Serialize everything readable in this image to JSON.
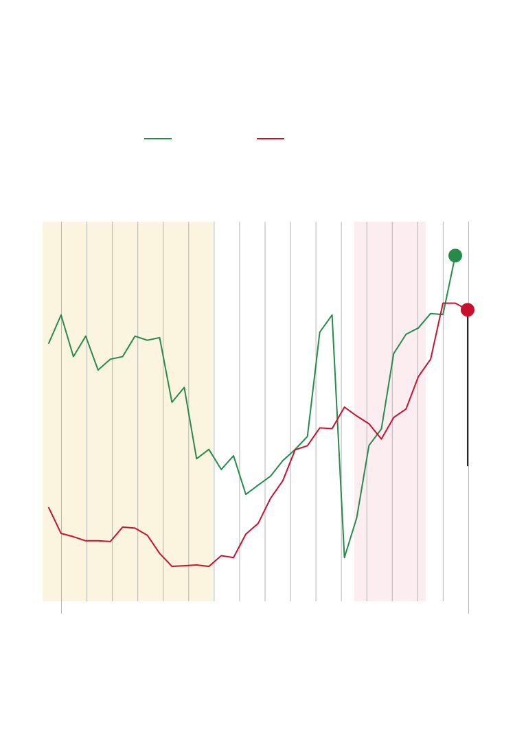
{
  "chart_data": {
    "type": "line",
    "title": "",
    "xlabel": "",
    "ylabel": "",
    "x": [
      0,
      1,
      2,
      3,
      4,
      5,
      6,
      7,
      8,
      9,
      10,
      11,
      12,
      13,
      14,
      15,
      16,
      17,
      18,
      19,
      20,
      21,
      22,
      23,
      24,
      25,
      26,
      27,
      28,
      29,
      30,
      31,
      32,
      33,
      34
    ],
    "ylim": [
      0,
      100
    ],
    "grid": "vertical",
    "legend": "top-center",
    "shaded_regions": [
      {
        "x_start": -0.5,
        "x_end": 13.3,
        "color": "#fbf5df"
      },
      {
        "x_start": 24.8,
        "x_end": 30.6,
        "color": "#fcedf0"
      }
    ],
    "series": [
      {
        "name": "",
        "color": "#258a4a",
        "values": [
          69.5,
          77.1,
          65.9,
          71.4,
          62.3,
          65.2,
          65.9,
          71.4,
          70.3,
          71.0,
          53.6,
          57.6,
          38.4,
          40.9,
          35.5,
          39.2,
          28.8,
          31.3,
          33.7,
          37.9,
          40.9,
          44.4,
          72.5,
          77.1,
          11.8,
          22.5,
          42.0,
          46.4,
          66.7,
          71.9,
          73.6,
          77.5,
          77.2,
          93.1,
          null
        ],
        "end_marker": true
      },
      {
        "name": "",
        "color": "#c8102e",
        "values": [
          25.2,
          18.3,
          17.4,
          16.3,
          16.3,
          16.1,
          20.0,
          19.7,
          17.8,
          12.9,
          9.4,
          9.6,
          9.8,
          9.4,
          12.3,
          11.8,
          18.1,
          21.0,
          27.7,
          32.5,
          40.8,
          41.9,
          46.7,
          46.5,
          52.3,
          49.9,
          47.8,
          43.7,
          49.5,
          51.8,
          60.5,
          65.2,
          80.3,
          80.3,
          78.5
        ],
        "end_marker": true,
        "end_drop_to": 36.4
      }
    ]
  }
}
